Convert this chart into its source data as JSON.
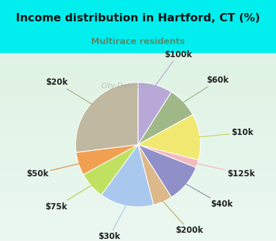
{
  "title": "Income distribution in Hartford, CT (%)",
  "subtitle": "Multirace residents",
  "title_color": "#111111",
  "subtitle_color": "#5a8a6a",
  "background_outer": "#00eeee",
  "background_inner_top": "#e0f0f0",
  "background_inner_bottom": "#d8eee0",
  "watermark": "City-Data.com",
  "labels": [
    "$100k",
    "$60k",
    "$10k",
    "$125k",
    "$40k",
    "$200k",
    "$30k",
    "$75k",
    "$50k",
    "$20k"
  ],
  "values": [
    9,
    8,
    12,
    2,
    10,
    5,
    14,
    7,
    6,
    27
  ],
  "colors": [
    "#b8a8d8",
    "#a0b888",
    "#f0e870",
    "#f4b8c0",
    "#9090c8",
    "#ddb888",
    "#a8c8ee",
    "#c0e060",
    "#f0a050",
    "#c0b8a0"
  ],
  "startangle": 90,
  "label_fontsize": 8.5,
  "line_colors": [
    "#b8a8d8",
    "#a0b888",
    "#d0d060",
    "#f4b8c0",
    "#9090a8",
    "#c8a870",
    "#a8c8ee",
    "#b0d050",
    "#e09040",
    "#b0a888"
  ]
}
